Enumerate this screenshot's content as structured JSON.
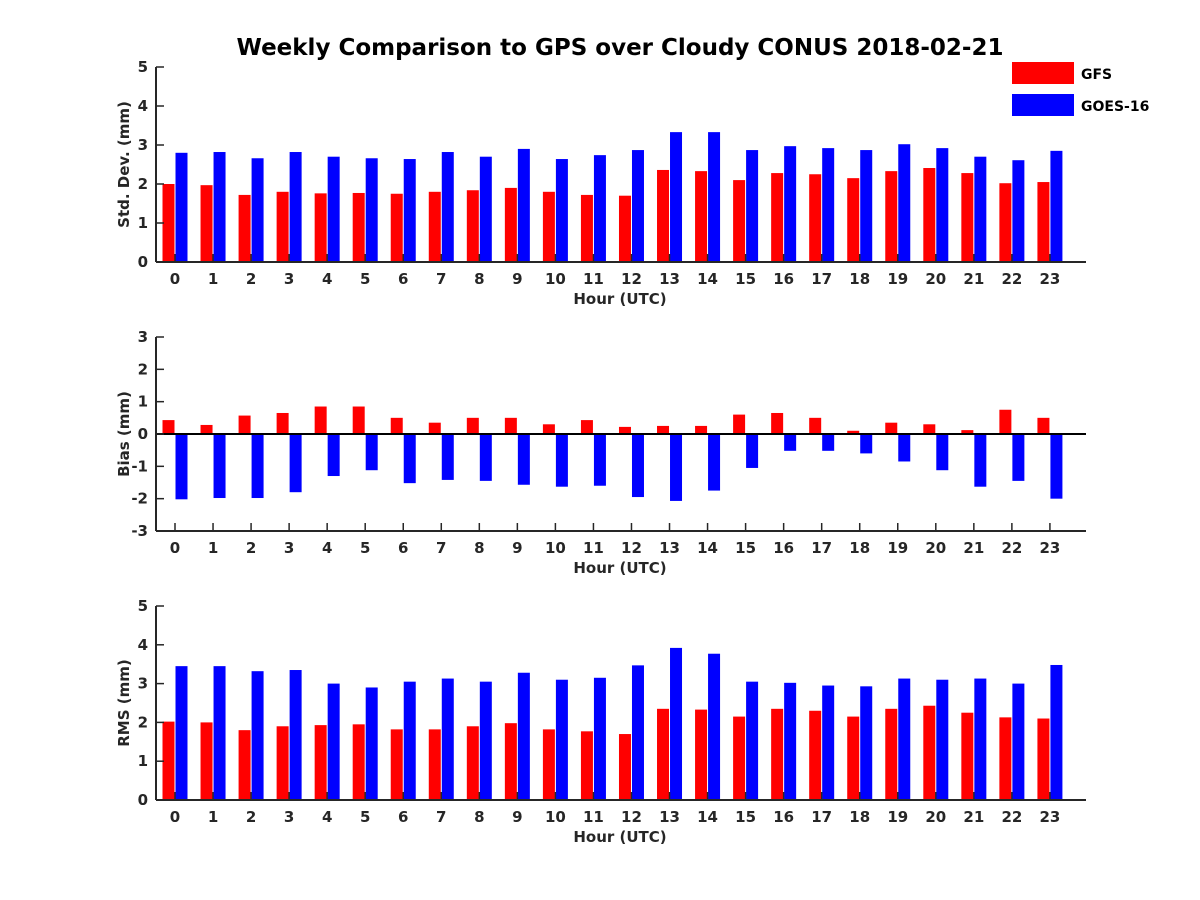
{
  "figure": {
    "title": "Weekly Comparison to GPS over Cloudy CONUS 2018-02-21"
  },
  "legend": {
    "placement": "top-right",
    "items": [
      {
        "name": "GFS",
        "color": "#ff0000"
      },
      {
        "name": "GOES-16",
        "color": "#0000ff"
      }
    ]
  },
  "chart_data": [
    {
      "type": "bar",
      "xlabel": "Hour (UTC)",
      "ylabel": "Std. Dev. (mm)",
      "ylim": [
        0,
        5
      ],
      "yticks": [
        0,
        1,
        2,
        3,
        4,
        5
      ],
      "grid": false,
      "categories": [
        "0",
        "1",
        "2",
        "3",
        "4",
        "5",
        "6",
        "7",
        "8",
        "9",
        "10",
        "11",
        "12",
        "13",
        "14",
        "15",
        "16",
        "17",
        "18",
        "19",
        "20",
        "21",
        "22",
        "23"
      ],
      "series": [
        {
          "name": "GFS",
          "color": "#ff0000",
          "values": [
            2.0,
            1.97,
            1.72,
            1.8,
            1.76,
            1.77,
            1.75,
            1.8,
            1.84,
            1.9,
            1.8,
            1.72,
            1.7,
            2.36,
            2.33,
            2.1,
            2.28,
            2.25,
            2.15,
            2.33,
            2.41,
            2.28,
            2.02,
            2.05
          ]
        },
        {
          "name": "GOES-16",
          "color": "#0000ff",
          "values": [
            2.8,
            2.82,
            2.66,
            2.82,
            2.7,
            2.66,
            2.64,
            2.82,
            2.7,
            2.9,
            2.64,
            2.74,
            2.87,
            3.33,
            3.33,
            2.87,
            2.97,
            2.92,
            2.87,
            3.02,
            2.92,
            2.7,
            2.61,
            2.85
          ]
        }
      ]
    },
    {
      "type": "bar",
      "xlabel": "Hour (UTC)",
      "ylabel": "Bias (mm)",
      "ylim": [
        -3,
        3
      ],
      "yticks": [
        -3,
        -2,
        -1,
        0,
        1,
        2,
        3
      ],
      "grid": false,
      "zero_line": true,
      "categories": [
        "0",
        "1",
        "2",
        "3",
        "4",
        "5",
        "6",
        "7",
        "8",
        "9",
        "10",
        "11",
        "12",
        "13",
        "14",
        "15",
        "16",
        "17",
        "18",
        "19",
        "20",
        "21",
        "22",
        "23"
      ],
      "series": [
        {
          "name": "GFS",
          "color": "#ff0000",
          "values": [
            0.43,
            0.28,
            0.57,
            0.65,
            0.85,
            0.85,
            0.5,
            0.35,
            0.5,
            0.5,
            0.3,
            0.43,
            0.22,
            0.25,
            0.25,
            0.6,
            0.65,
            0.5,
            0.1,
            0.35,
            0.3,
            0.12,
            0.75,
            0.5
          ]
        },
        {
          "name": "GOES-16",
          "color": "#0000ff",
          "values": [
            -2.02,
            -1.98,
            -1.98,
            -1.8,
            -1.3,
            -1.12,
            -1.52,
            -1.42,
            -1.45,
            -1.57,
            -1.63,
            -1.6,
            -1.95,
            -2.07,
            -1.75,
            -1.05,
            -0.52,
            -0.52,
            -0.6,
            -0.85,
            -1.12,
            -1.63,
            -1.45,
            -2.0
          ]
        }
      ]
    },
    {
      "type": "bar",
      "xlabel": "Hour (UTC)",
      "ylabel": "RMS (mm)",
      "ylim": [
        0,
        5
      ],
      "yticks": [
        0,
        1,
        2,
        3,
        4,
        5
      ],
      "grid": false,
      "categories": [
        "0",
        "1",
        "2",
        "3",
        "4",
        "5",
        "6",
        "7",
        "8",
        "9",
        "10",
        "11",
        "12",
        "13",
        "14",
        "15",
        "16",
        "17",
        "18",
        "19",
        "20",
        "21",
        "22",
        "23"
      ],
      "series": [
        {
          "name": "GFS",
          "color": "#ff0000",
          "values": [
            2.02,
            2.0,
            1.8,
            1.9,
            1.93,
            1.95,
            1.82,
            1.82,
            1.9,
            1.98,
            1.82,
            1.77,
            1.7,
            2.35,
            2.33,
            2.15,
            2.35,
            2.3,
            2.15,
            2.35,
            2.43,
            2.25,
            2.13,
            2.1
          ]
        },
        {
          "name": "GOES-16",
          "color": "#0000ff",
          "values": [
            3.45,
            3.45,
            3.32,
            3.35,
            3.0,
            2.9,
            3.05,
            3.13,
            3.05,
            3.28,
            3.1,
            3.15,
            3.47,
            3.92,
            3.77,
            3.05,
            3.02,
            2.95,
            2.93,
            3.13,
            3.1,
            3.13,
            3.0,
            3.48
          ]
        }
      ]
    }
  ]
}
